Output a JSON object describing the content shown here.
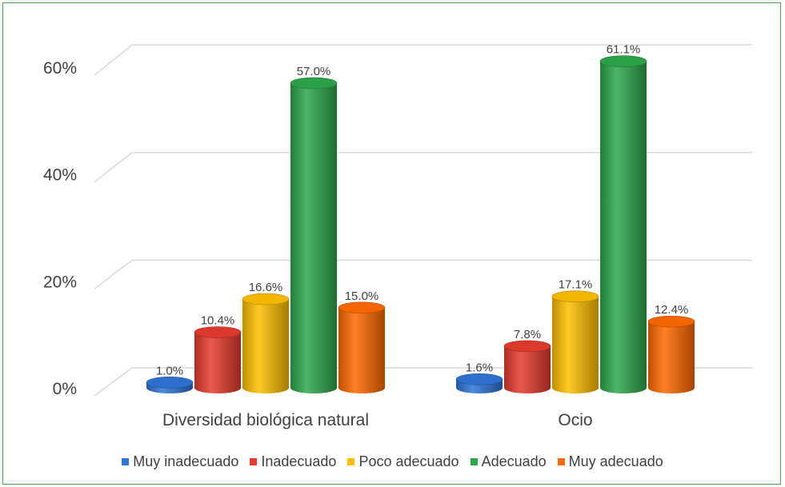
{
  "chart_data": {
    "type": "bar",
    "style": "3d-cylinder",
    "categories": [
      "Diversidad biológica natural",
      "Ocio"
    ],
    "series": [
      {
        "name": "Muy inadecuado",
        "color": "#2e75d8",
        "values": [
          1.0,
          1.6
        ],
        "labels": [
          "1.0%",
          "1.6%"
        ]
      },
      {
        "name": "Inadecuado",
        "color": "#e63c2e",
        "values": [
          10.4,
          7.8
        ],
        "labels": [
          "10.4%",
          "7.8%"
        ]
      },
      {
        "name": "Poco adecuado",
        "color": "#ffc000",
        "values": [
          16.6,
          17.1
        ],
        "labels": [
          "16.6%",
          "17.1%"
        ]
      },
      {
        "name": "Adecuado",
        "color": "#2ea84c",
        "values": [
          57.0,
          61.1
        ],
        "labels": [
          "57.0%",
          "61.1%"
        ]
      },
      {
        "name": "Muy adecuado",
        "color": "#ff6a00",
        "values": [
          15.0,
          12.4
        ],
        "labels": [
          "15.0%",
          "12.4%"
        ]
      }
    ],
    "yticks": [
      0,
      20,
      40,
      60
    ],
    "ytick_labels": [
      "0%",
      "20%",
      "40%",
      "60%"
    ],
    "ylim": [
      0,
      60
    ],
    "grid": true,
    "legend_position": "bottom"
  }
}
